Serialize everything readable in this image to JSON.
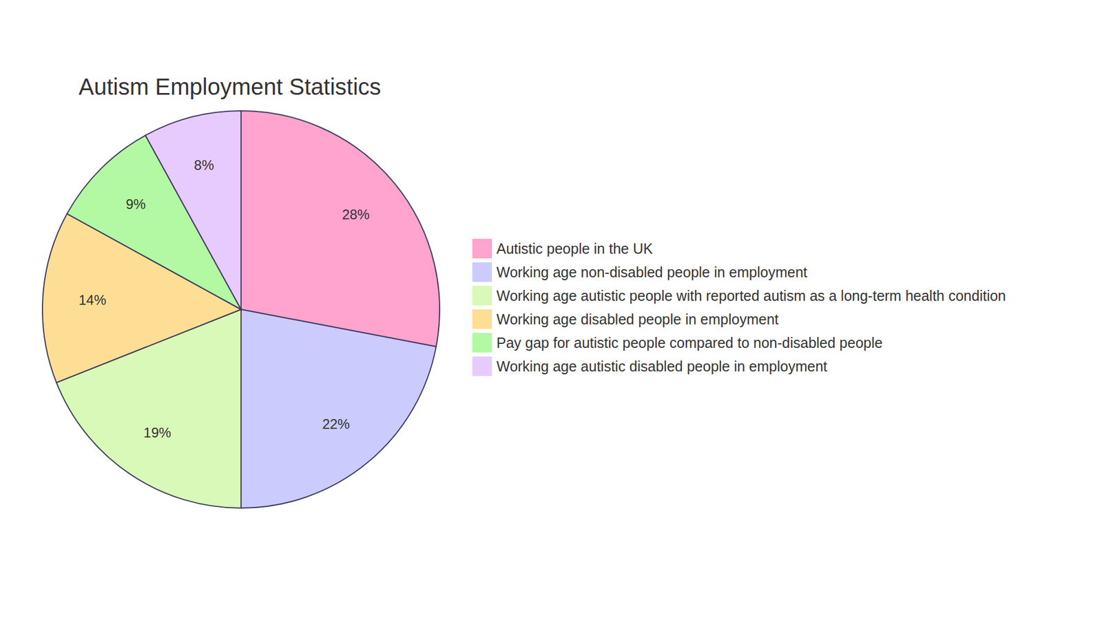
{
  "chart_data": {
    "type": "pie",
    "title": "Autism Employment Statistics",
    "categories": [
      "Autistic people in the UK",
      "Working age non-disabled people in employment",
      "Working age autistic people with reported autism as a long-term health condition",
      "Working age disabled people in employment",
      "Pay gap for autistic people compared to non-disabled people",
      "Working age autistic disabled people in employment"
    ],
    "values": [
      28,
      22,
      19,
      14,
      9,
      8
    ],
    "value_labels": [
      "28%",
      "22%",
      "19%",
      "14%",
      "9%",
      "8%"
    ],
    "colors": [
      "#ffa3cf",
      "#cbcbfe",
      "#d9f9b8",
      "#fede95",
      "#b3f8a3",
      "#e8cbfe"
    ],
    "data_labels": true,
    "legend": "right"
  }
}
